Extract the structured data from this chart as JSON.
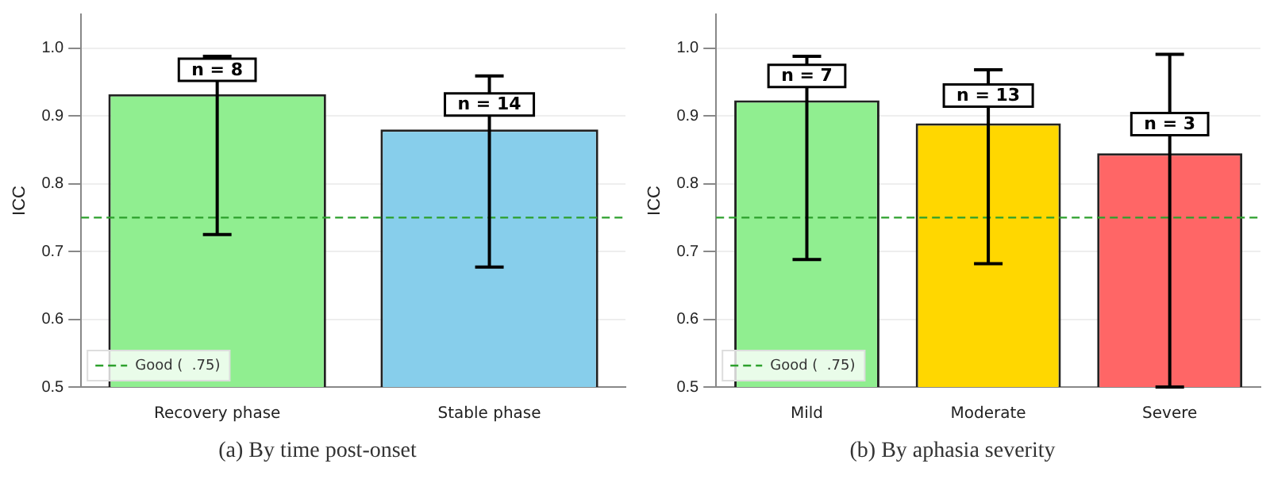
{
  "chart_data": [
    {
      "type": "bar",
      "title": "(a) By time post-onset",
      "ylabel": "ICC",
      "categories": [
        "Recovery phase",
        "Stable phase"
      ],
      "values": [
        0.932,
        0.88
      ],
      "colors": [
        "#90ee90",
        "#87ceeb"
      ],
      "errors": [
        [
          0.725,
          0.988
        ],
        [
          0.677,
          0.959
        ]
      ],
      "ylim": [
        0.5,
        1.05
      ],
      "yticks": [
        0.5,
        0.6,
        0.7,
        0.8,
        0.9,
        {
          "value": 1.0,
          "label": "1.0"
        }
      ],
      "grid": "y",
      "legend": "bottom left",
      "ref_lines": [
        {
          "axis": "y",
          "value": 0.75,
          "label": "Good (  .75)",
          "color": "#2ca02c",
          "line_style": "dashed"
        }
      ],
      "annotations": [
        {
          "text": "n = 8",
          "x": "Recovery phase",
          "y": 0.968
        },
        {
          "text": "n = 14",
          "x": "Stable phase",
          "y": 0.917
        }
      ]
    },
    {
      "type": "bar",
      "title": "(b) By aphasia severity",
      "ylabel": "ICC",
      "categories": [
        "Mild",
        "Moderate",
        "Severe"
      ],
      "values": [
        0.923,
        0.889,
        0.845
      ],
      "colors": [
        "#90ee90",
        "#ffd700",
        "#ff6666"
      ],
      "errors": [
        [
          0.688,
          0.988
        ],
        [
          0.682,
          0.968
        ],
        [
          0.5,
          0.991
        ]
      ],
      "ylim": [
        0.5,
        1.05
      ],
      "yticks": [
        0.5,
        0.6,
        0.7,
        0.8,
        0.9,
        {
          "value": 1.0,
          "label": "1.0"
        }
      ],
      "grid": "y",
      "legend": "bottom left",
      "ref_lines": [
        {
          "axis": "y",
          "value": 0.75,
          "label": "Good (  .75)",
          "color": "#2ca02c",
          "line_style": "dashed"
        }
      ],
      "annotations": [
        {
          "text": "n = 7",
          "x": "Mild",
          "y": 0.959
        },
        {
          "text": "n = 13",
          "x": "Moderate",
          "y": 0.93
        },
        {
          "text": "n = 3",
          "x": "Severe",
          "y": 0.888
        }
      ]
    }
  ]
}
